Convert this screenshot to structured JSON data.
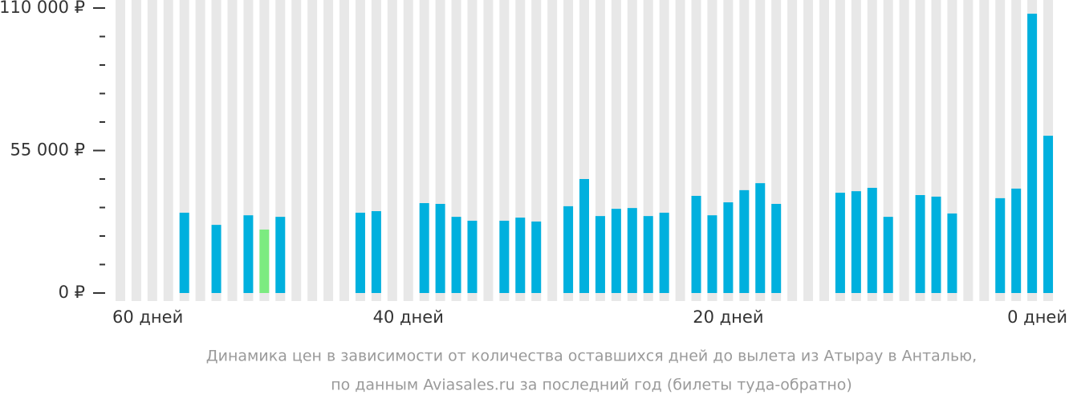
{
  "chart_data": {
    "type": "bar",
    "x": [
      54,
      52,
      50,
      49,
      48,
      43,
      42,
      39,
      38,
      37,
      36,
      34,
      33,
      32,
      30,
      29,
      28,
      27,
      26,
      25,
      24,
      22,
      21,
      20,
      19,
      18,
      17,
      13,
      12,
      11,
      10,
      8,
      7,
      6,
      3,
      2,
      1,
      0
    ],
    "values": [
      31000,
      26300,
      30000,
      24500,
      29400,
      31000,
      31600,
      34700,
      34400,
      29400,
      27900,
      27900,
      29100,
      27600,
      33500,
      44000,
      29700,
      32500,
      32800,
      29700,
      31000,
      37500,
      30000,
      35000,
      39700,
      42400,
      34400,
      38700,
      39300,
      40600,
      29400,
      37800,
      37200,
      30700,
      36600,
      40300,
      107800,
      60700
    ],
    "color": "#00b0de",
    "min_color": "#7ceb80",
    "column_color": "#e8e8e8",
    "xlim": [
      58.5,
      -0.5
    ],
    "xticks": [
      {
        "value": 60,
        "label": "60 дней"
      },
      {
        "value": 40,
        "label": "40 дней"
      },
      {
        "value": 20,
        "label": "20 дней"
      },
      {
        "value": 0,
        "label": "0 дней"
      }
    ],
    "ylim": [
      0,
      110000
    ],
    "yticks": [
      {
        "value": 0,
        "label": "0 ₽"
      },
      {
        "value": 55000,
        "label": "55 000 ₽"
      },
      {
        "value": 110000,
        "label": "110 000 ₽"
      }
    ],
    "yminor_ticks": [
      11000,
      22000,
      33000,
      44000,
      66000,
      77000,
      88000,
      99000
    ],
    "subtitle": [
      "Динамика цен в зависимости от количества оставшихся дней до вылета из Атырау в Анталью,",
      "по данным Aviasales.ru за последний год (билеты туда-обратно)"
    ]
  }
}
